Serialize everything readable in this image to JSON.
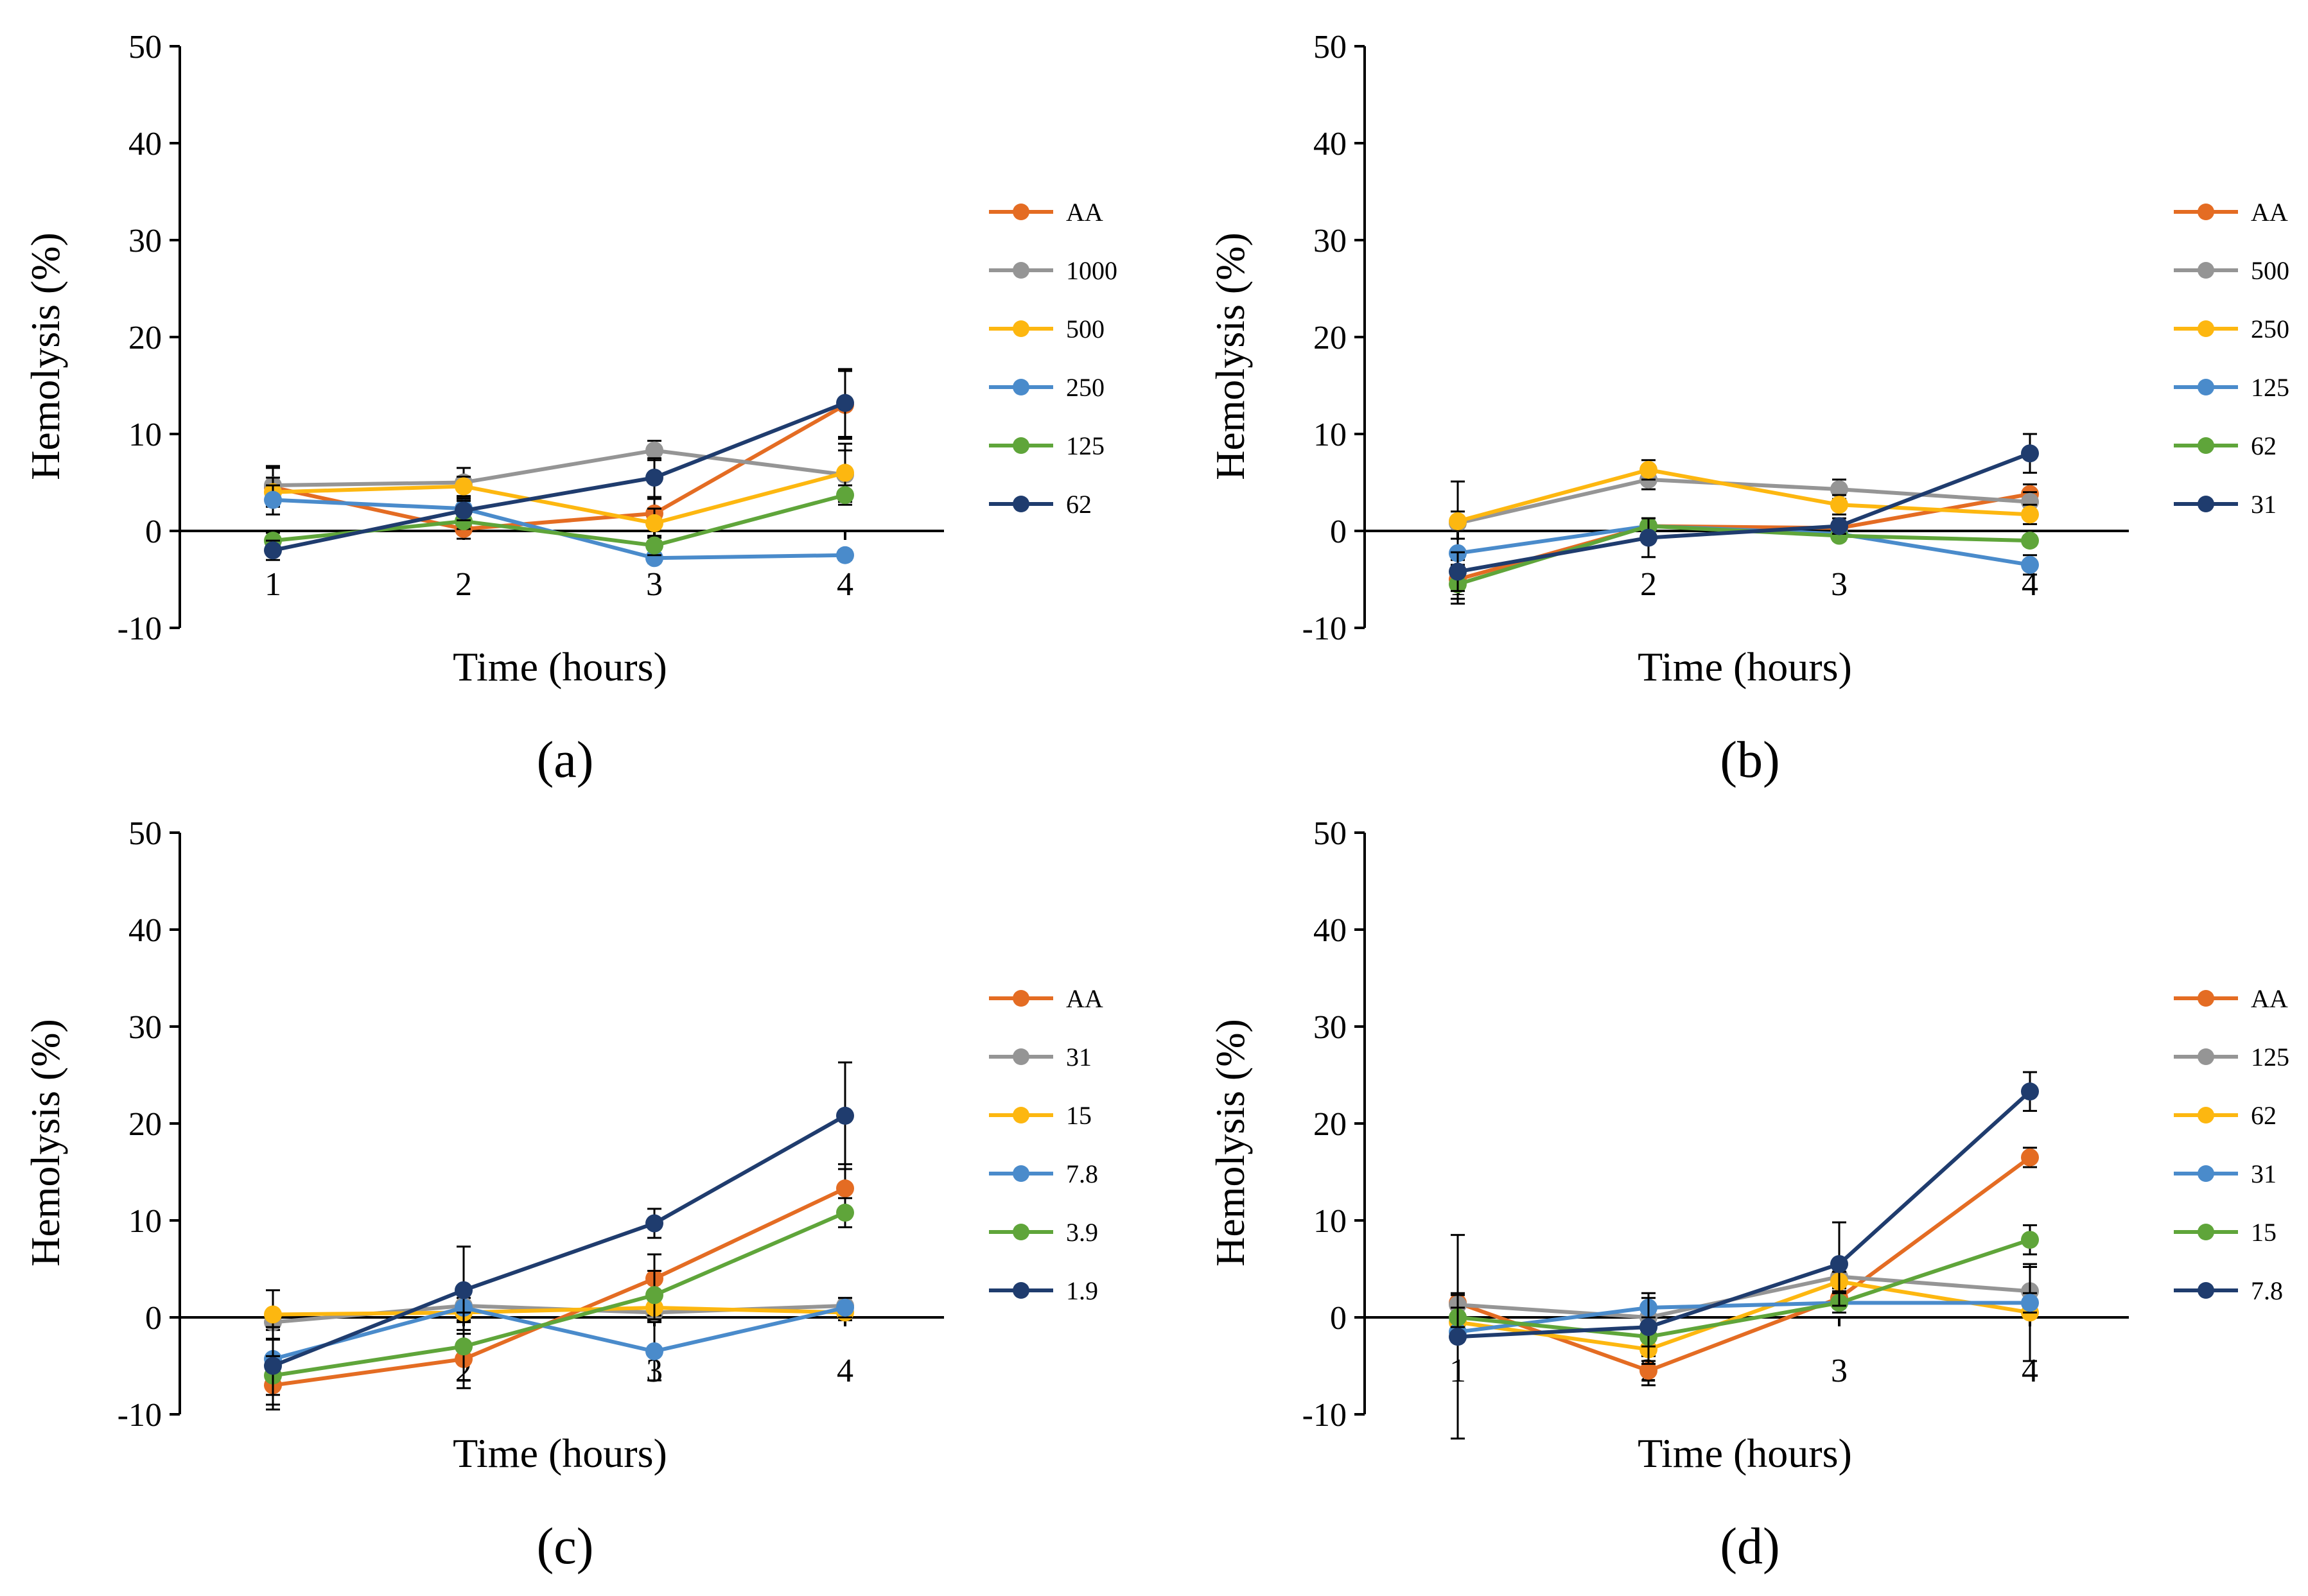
{
  "figure": {
    "x_label": "Time (hours)",
    "y_label": "Hemolysis (%)"
  },
  "chart_data": [
    {
      "type": "line",
      "panel": "(a)",
      "xlabel": "Time (hours)",
      "ylabel": "Hemolysis (%)",
      "ylim": [
        -10,
        50
      ],
      "yticks": [
        -10,
        0,
        10,
        20,
        30,
        40,
        50
      ],
      "x": [
        1,
        2,
        3,
        4
      ],
      "error_bars": true,
      "series": [
        {
          "name": "AA",
          "color": "#E46C23",
          "values": [
            4.5,
            0.2,
            1.8,
            13.0
          ],
          "errors": [
            2.0,
            1.0,
            1.5,
            3.5
          ]
        },
        {
          "name": "1000",
          "color": "#959595",
          "values": [
            4.7,
            5.0,
            8.3,
            5.8
          ],
          "errors": [
            2.0,
            1.5,
            1.0,
            2.5
          ]
        },
        {
          "name": "500",
          "color": "#FDB710",
          "values": [
            4.0,
            4.6,
            0.8,
            6.0
          ],
          "errors": [
            1.5,
            1.0,
            1.5,
            3.0
          ]
        },
        {
          "name": "250",
          "color": "#4A8BCB",
          "values": [
            3.2,
            2.3,
            -2.8,
            -2.5
          ],
          "errors": [
            1.5,
            1.0,
            0.5,
            0.5
          ]
        },
        {
          "name": "125",
          "color": "#5FA53A",
          "values": [
            -1.0,
            1.0,
            -1.5,
            3.7
          ],
          "errors": [
            0.8,
            0.8,
            1.0,
            1.0
          ]
        },
        {
          "name": "62",
          "color": "#1F3C6E",
          "values": [
            -2.0,
            2.1,
            5.5,
            13.2
          ],
          "errors": [
            1.0,
            1.0,
            2.0,
            3.5
          ]
        }
      ]
    },
    {
      "type": "line",
      "panel": "(b)",
      "xlabel": "Time (hours)",
      "ylabel": "Hemolysis (%)",
      "ylim": [
        -10,
        50
      ],
      "yticks": [
        -10,
        0,
        10,
        20,
        30,
        40,
        50
      ],
      "x": [
        1,
        2,
        3,
        4
      ],
      "error_bars": true,
      "series": [
        {
          "name": "AA",
          "color": "#E46C23",
          "values": [
            -5.0,
            0.5,
            0.3,
            3.8
          ],
          "errors": [
            2.0,
            0.8,
            0.5,
            1.0
          ]
        },
        {
          "name": "500",
          "color": "#959595",
          "values": [
            0.8,
            5.3,
            4.3,
            3.0
          ],
          "errors": [
            4.3,
            1.0,
            1.0,
            1.0
          ]
        },
        {
          "name": "250",
          "color": "#FDB710",
          "values": [
            1.0,
            6.3,
            2.7,
            1.7
          ],
          "errors": [
            1.0,
            1.0,
            1.0,
            1.0
          ]
        },
        {
          "name": "125",
          "color": "#4A8BCB",
          "values": [
            -2.3,
            0.5,
            -0.3,
            -3.5
          ],
          "errors": [
            1.5,
            0.8,
            0.5,
            1.0
          ]
        },
        {
          "name": "62",
          "color": "#5FA53A",
          "values": [
            -5.5,
            0.5,
            -0.5,
            -1.0
          ],
          "errors": [
            2.0,
            0.8,
            0.5,
            0.5
          ]
        },
        {
          "name": "31",
          "color": "#1F3C6E",
          "values": [
            -4.2,
            -0.7,
            0.5,
            8.0
          ],
          "errors": [
            2.0,
            2.0,
            0.8,
            2.0
          ]
        }
      ]
    },
    {
      "type": "line",
      "panel": "(c)",
      "xlabel": "Time (hours)",
      "ylabel": "Hemolysis (%)",
      "ylim": [
        -10,
        50
      ],
      "yticks": [
        -10,
        0,
        10,
        20,
        30,
        40,
        50
      ],
      "x": [
        1,
        2,
        3,
        4
      ],
      "error_bars": true,
      "series": [
        {
          "name": "AA",
          "color": "#E46C23",
          "values": [
            -7.0,
            -4.3,
            4.0,
            13.3
          ],
          "errors": [
            2.5,
            3.0,
            2.5,
            2.5
          ]
        },
        {
          "name": "31",
          "color": "#959595",
          "values": [
            -0.5,
            1.2,
            0.5,
            1.2
          ],
          "errors": [
            0.8,
            0.8,
            0.8,
            0.8
          ]
        },
        {
          "name": "15",
          "color": "#FDB710",
          "values": [
            0.3,
            0.5,
            1.0,
            0.5
          ],
          "errors": [
            2.5,
            0.8,
            0.8,
            0.8
          ]
        },
        {
          "name": "7.8",
          "color": "#4A8BCB",
          "values": [
            -4.3,
            1.0,
            -3.5,
            1.0
          ],
          "errors": [
            2.0,
            1.5,
            3.0,
            1.0
          ]
        },
        {
          "name": "3.9",
          "color": "#5FA53A",
          "values": [
            -6.0,
            -3.0,
            2.3,
            10.8
          ],
          "errors": [
            2.0,
            3.5,
            2.5,
            1.5
          ]
        },
        {
          "name": "1.9",
          "color": "#1F3C6E",
          "values": [
            -5.0,
            2.8,
            9.7,
            20.8
          ],
          "errors": [
            4.0,
            4.5,
            1.5,
            5.5
          ]
        }
      ]
    },
    {
      "type": "line",
      "panel": "(d)",
      "xlabel": "Time (hours)",
      "ylabel": "Hemolysis (%)",
      "ylim": [
        -10,
        50
      ],
      "yticks": [
        -10,
        0,
        10,
        20,
        30,
        40,
        50
      ],
      "x": [
        1,
        2,
        3,
        4
      ],
      "error_bars": true,
      "series": [
        {
          "name": "AA",
          "color": "#E46C23",
          "values": [
            1.5,
            -5.5,
            2.0,
            16.5
          ],
          "errors": [
            1.0,
            1.5,
            1.0,
            1.0
          ]
        },
        {
          "name": "125",
          "color": "#959595",
          "values": [
            1.3,
            0.0,
            4.2,
            2.7
          ],
          "errors": [
            1.0,
            1.0,
            1.0,
            2.5
          ]
        },
        {
          "name": "62",
          "color": "#FDB710",
          "values": [
            -0.5,
            -3.3,
            3.7,
            0.5
          ],
          "errors": [
            1.0,
            1.5,
            1.0,
            5.0
          ]
        },
        {
          "name": "31",
          "color": "#4A8BCB",
          "values": [
            -1.5,
            1.0,
            1.5,
            1.5
          ],
          "errors": [
            1.0,
            1.0,
            1.0,
            1.0
          ]
        },
        {
          "name": "15",
          "color": "#5FA53A",
          "values": [
            0.0,
            -2.0,
            1.5,
            8.0
          ],
          "errors": [
            1.0,
            1.0,
            1.0,
            1.5
          ]
        },
        {
          "name": "7.8",
          "color": "#1F3C6E",
          "values": [
            -2.0,
            -1.0,
            5.5,
            23.3
          ],
          "errors": [
            10.5,
            3.5,
            4.3,
            2.0
          ]
        }
      ]
    }
  ]
}
